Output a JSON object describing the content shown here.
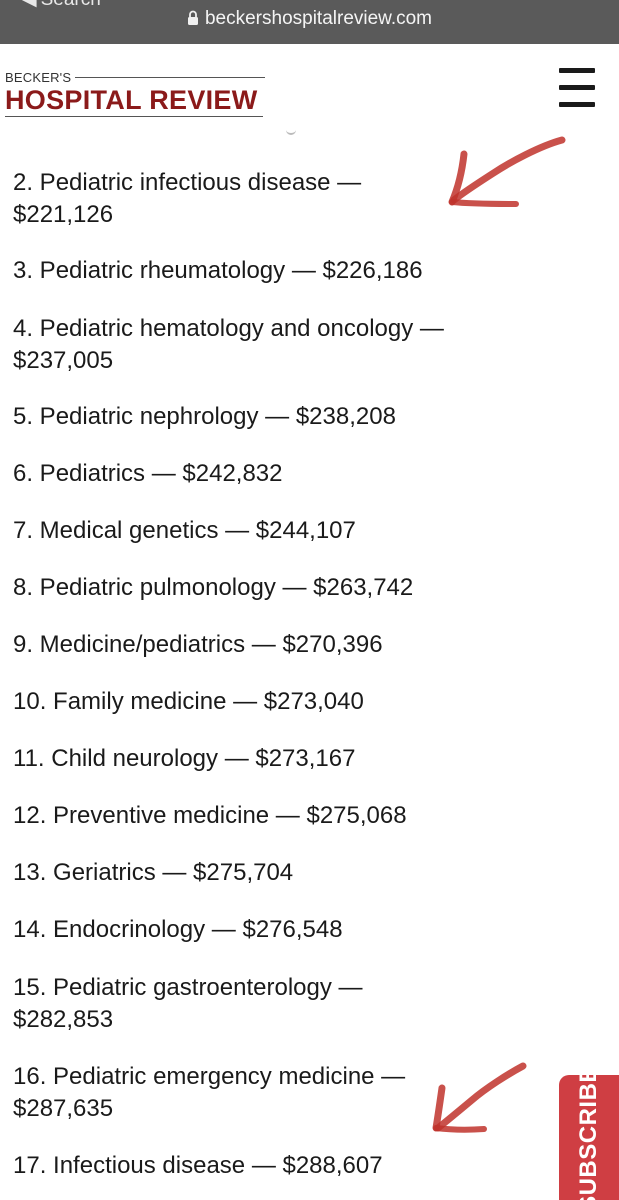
{
  "browser": {
    "back_label": "Search",
    "url": "beckershospitalreview.com"
  },
  "site": {
    "logo_top": "BECKER'S",
    "logo_main": "HOSPITAL REVIEW"
  },
  "list": [
    {
      "line1": "2. Pediatric infectious disease —",
      "line2": "$221,126"
    },
    {
      "line1": "3. Pediatric rheumatology — $226,186",
      "line2": ""
    },
    {
      "line1": "4. Pediatric hematology and oncology —",
      "line2": "$237,005"
    },
    {
      "line1": "5. Pediatric nephrology — $238,208",
      "line2": ""
    },
    {
      "line1": "6. Pediatrics — $242,832",
      "line2": ""
    },
    {
      "line1": "7. Medical genetics — $244,107",
      "line2": ""
    },
    {
      "line1": "8. Pediatric pulmonology — $263,742",
      "line2": ""
    },
    {
      "line1": "9. Medicine/pediatrics — $270,396",
      "line2": ""
    },
    {
      "line1": "10. Family medicine — $273,040",
      "line2": ""
    },
    {
      "line1": "11. Child neurology — $273,167",
      "line2": ""
    },
    {
      "line1": "12. Preventive medicine — $275,068",
      "line2": ""
    },
    {
      "line1": "13. Geriatrics — $275,704",
      "line2": ""
    },
    {
      "line1": "14. Endocrinology — $276,548",
      "line2": ""
    },
    {
      "line1": "15. Pediatric gastroenterology —",
      "line2": "$282,853"
    },
    {
      "line1": "16. Pediatric emergency medicine —",
      "line2": "$287,635"
    },
    {
      "line1": "17. Infectious disease — $288,607",
      "line2": ""
    }
  ],
  "subscribe": {
    "label": "SUBSCRIBE"
  },
  "colors": {
    "brand": "#8b1a1a",
    "urlbar": "#5a5a5a",
    "subscribe": "#cf3e43",
    "annotation": "#c0332b"
  },
  "icons": [
    "back-chevron-icon",
    "lock-icon",
    "hamburger-menu-icon",
    "annotation-arrow-icon"
  ]
}
